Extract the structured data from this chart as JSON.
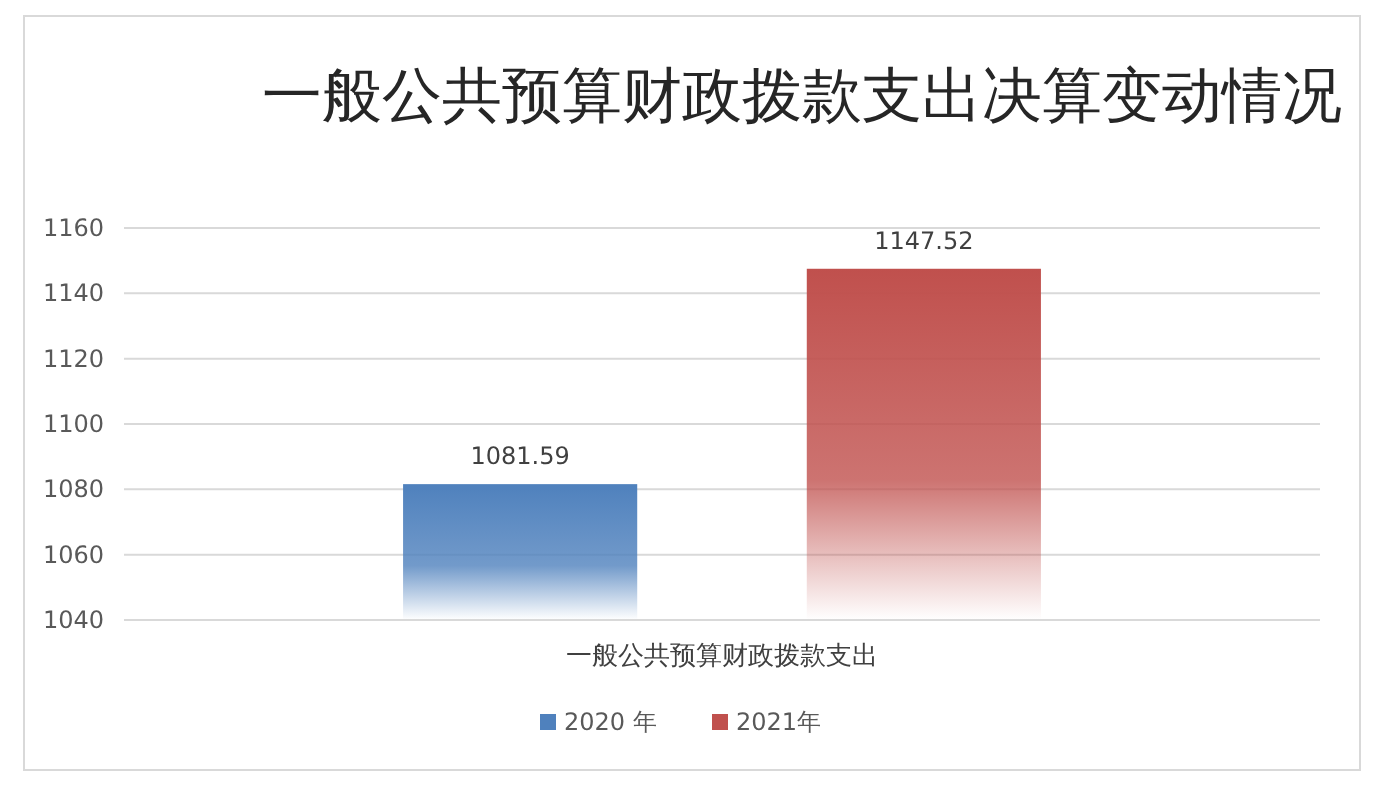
{
  "chart_data": {
    "type": "bar",
    "title": "一般公共预算财政拨款支出决算变动情况",
    "categories": [
      "一般公共预算财政拨款支出"
    ],
    "series": [
      {
        "name": "2020 年",
        "color": "#4f81bd",
        "values": [
          1081.59
        ]
      },
      {
        "name": "2021年",
        "color": "#c0504d",
        "values": [
          1147.52
        ]
      }
    ],
    "ylim": [
      1040,
      1160
    ],
    "yticks": [
      1040,
      1060,
      1080,
      1100,
      1120,
      1140,
      1160
    ],
    "grid": "y",
    "legend": "bottom",
    "data_labels": true
  }
}
